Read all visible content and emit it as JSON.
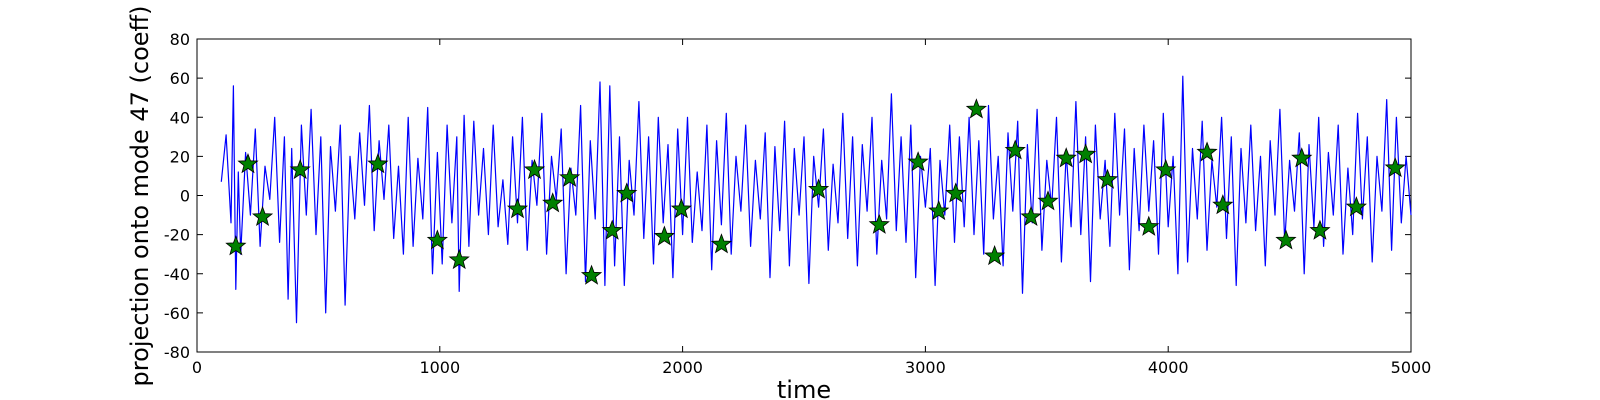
{
  "chart_data": {
    "type": "line",
    "title": "",
    "xlabel": "time",
    "ylabel": "projection onto mode 47 (coeff)",
    "xlim": [
      0,
      5000
    ],
    "ylim": [
      -80,
      80
    ],
    "x_ticks": [
      0,
      1000,
      2000,
      3000,
      4000,
      5000
    ],
    "y_ticks": [
      -80,
      -60,
      -40,
      -20,
      0,
      20,
      40,
      60,
      80
    ],
    "grid": false,
    "legend": "none",
    "colors": {
      "line": "#0000ff",
      "marker_fill": "#008000",
      "marker_edge": "#000000"
    },
    "series": [
      {
        "type": "line",
        "x": [
          100,
          120,
          140,
          150,
          160,
          170,
          180,
          200,
          220,
          240,
          260,
          280,
          300,
          320,
          340,
          360,
          375,
          390,
          410,
          430,
          450,
          470,
          490,
          510,
          530,
          550,
          570,
          590,
          610,
          630,
          650,
          670,
          690,
          710,
          730,
          750,
          770,
          790,
          810,
          830,
          850,
          870,
          890,
          910,
          930,
          950,
          970,
          990,
          1010,
          1030,
          1050,
          1070,
          1080,
          1100,
          1120,
          1140,
          1160,
          1180,
          1200,
          1220,
          1240,
          1260,
          1280,
          1300,
          1320,
          1340,
          1360,
          1380,
          1400,
          1420,
          1440,
          1460,
          1480,
          1500,
          1520,
          1540,
          1560,
          1580,
          1600,
          1620,
          1640,
          1660,
          1680,
          1700,
          1720,
          1740,
          1760,
          1780,
          1800,
          1820,
          1840,
          1860,
          1880,
          1900,
          1920,
          1940,
          1960,
          1980,
          2000,
          2020,
          2040,
          2060,
          2080,
          2100,
          2120,
          2140,
          2160,
          2180,
          2200,
          2220,
          2240,
          2260,
          2280,
          2300,
          2320,
          2340,
          2360,
          2380,
          2400,
          2420,
          2440,
          2460,
          2480,
          2500,
          2520,
          2540,
          2560,
          2580,
          2600,
          2620,
          2640,
          2660,
          2680,
          2700,
          2720,
          2740,
          2760,
          2780,
          2800,
          2820,
          2840,
          2860,
          2880,
          2900,
          2920,
          2940,
          2960,
          2980,
          3000,
          3020,
          3040,
          3060,
          3080,
          3100,
          3120,
          3140,
          3160,
          3180,
          3200,
          3220,
          3240,
          3260,
          3280,
          3300,
          3320,
          3340,
          3360,
          3380,
          3400,
          3420,
          3440,
          3460,
          3480,
          3500,
          3520,
          3540,
          3560,
          3580,
          3600,
          3620,
          3640,
          3660,
          3680,
          3700,
          3720,
          3740,
          3760,
          3780,
          3800,
          3820,
          3840,
          3860,
          3880,
          3900,
          3920,
          3940,
          3960,
          3980,
          4000,
          4020,
          4040,
          4060,
          4080,
          4100,
          4120,
          4140,
          4160,
          4180,
          4200,
          4220,
          4240,
          4260,
          4280,
          4300,
          4320,
          4340,
          4360,
          4380,
          4400,
          4420,
          4440,
          4460,
          4480,
          4500,
          4520,
          4540,
          4560,
          4580,
          4600,
          4620,
          4640,
          4660,
          4680,
          4700,
          4720,
          4740,
          4760,
          4780,
          4800,
          4820,
          4840,
          4860,
          4880,
          4900,
          4920,
          4940,
          4960,
          4980,
          5000
        ],
        "y": [
          7,
          31,
          -14,
          56,
          -48,
          12,
          -30,
          22,
          -10,
          34,
          -26,
          15,
          -2,
          40,
          -24,
          30,
          -53,
          24,
          -65,
          36,
          -10,
          44,
          -20,
          30,
          -60,
          25,
          -8,
          36,
          -56,
          20,
          -12,
          32,
          -5,
          46,
          -18,
          28,
          -2,
          36,
          -22,
          15,
          -30,
          40,
          -26,
          19,
          -12,
          45,
          -40,
          22,
          -35,
          36,
          -14,
          30,
          -49,
          41,
          -26,
          38,
          -10,
          24,
          -20,
          36,
          -16,
          8,
          -25,
          30,
          -14,
          40,
          -28,
          18,
          -5,
          42,
          -30,
          20,
          -2,
          34,
          -40,
          14,
          -10,
          46,
          -44,
          28,
          -12,
          58,
          -46,
          56,
          -36,
          30,
          -46,
          18,
          -10,
          48,
          -22,
          30,
          -35,
          40,
          -14,
          26,
          -42,
          34,
          -20,
          40,
          -24,
          12,
          -18,
          36,
          -38,
          28,
          -15,
          42,
          -30,
          20,
          -8,
          36,
          -26,
          18,
          -12,
          32,
          -42,
          25,
          -18,
          38,
          -36,
          24,
          -10,
          30,
          -45,
          20,
          -6,
          34,
          -28,
          16,
          -14,
          42,
          -22,
          30,
          -36,
          26,
          -8,
          40,
          -30,
          18,
          -12,
          52,
          -18,
          30,
          -24,
          36,
          -42,
          20,
          -6,
          24,
          -46,
          18,
          -10,
          36,
          -24,
          30,
          -16,
          40,
          -20,
          28,
          -30,
          46,
          -12,
          20,
          -36,
          32,
          -8,
          38,
          -50,
          26,
          -14,
          44,
          -28,
          18,
          -6,
          40,
          -34,
          22,
          -16,
          48,
          -20,
          30,
          -44,
          36,
          -12,
          18,
          -26,
          42,
          -10,
          34,
          -38,
          24,
          -18,
          36,
          -8,
          28,
          -30,
          42,
          -16,
          20,
          -40,
          61,
          -34,
          24,
          -12,
          38,
          -28,
          18,
          -6,
          40,
          -22,
          30,
          -46,
          24,
          -14,
          36,
          -18,
          20,
          -36,
          28,
          -10,
          44,
          -24,
          18,
          -8,
          32,
          -40,
          26,
          -16,
          40,
          -26,
          22,
          -10,
          36,
          -30,
          14,
          -20,
          42,
          -12,
          30,
          -34,
          20,
          -8,
          49,
          -28,
          40,
          -14,
          20,
          -10
        ]
      },
      {
        "type": "scatter",
        "marker": "star",
        "x": [
          160,
          210,
          270,
          425,
          745,
          990,
          1080,
          1320,
          1390,
          1465,
          1535,
          1625,
          1710,
          1770,
          1925,
          1995,
          2160,
          2560,
          2810,
          2970,
          3055,
          3125,
          3210,
          3285,
          3370,
          3435,
          3505,
          3580,
          3660,
          3750,
          3920,
          3990,
          4160,
          4225,
          4485,
          4550,
          4625,
          4775,
          4935
        ],
        "y": [
          -26,
          16,
          -11,
          13,
          16,
          -23,
          -33,
          -7,
          13,
          -4,
          9,
          -41,
          -18,
          1,
          -21,
          -7,
          -25,
          3,
          -15,
          17,
          -8,
          1,
          44,
          -31,
          23,
          -11,
          -3,
          19,
          21,
          8,
          -16,
          13,
          22,
          -5,
          -23,
          19,
          -18,
          -6,
          14
        ]
      }
    ]
  }
}
